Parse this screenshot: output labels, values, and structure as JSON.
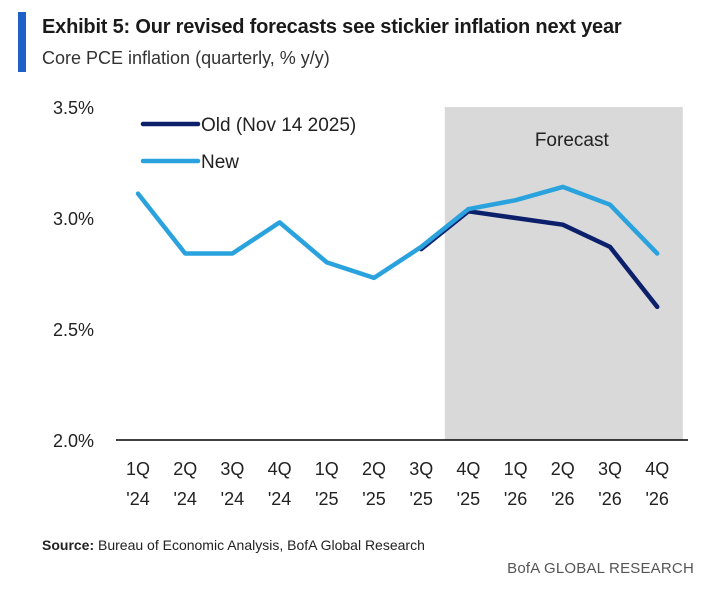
{
  "header": {
    "title": "Exhibit 5: Our revised forecasts see stickier inflation next year",
    "subtitle": "Core PCE inflation (quarterly, % y/y)"
  },
  "footer": {
    "source_label": "Source:",
    "source_text": "Bureau of Economic Analysis, BofA Global Research",
    "brand": "BofA GLOBAL RESEARCH"
  },
  "colors": {
    "old": "#0c1f6b",
    "new": "#2aa2dd",
    "forecast_shade": "#d9d9d9",
    "axis": "#000000"
  },
  "chart_data": {
    "type": "line",
    "title": "Exhibit 5: Our revised forecasts see stickier inflation next year",
    "subtitle": "Core PCE inflation (quarterly, % y/y)",
    "categories": [
      [
        "1Q",
        "'24"
      ],
      [
        "2Q",
        "'24"
      ],
      [
        "3Q",
        "'24"
      ],
      [
        "4Q",
        "'24"
      ],
      [
        "1Q",
        "'25"
      ],
      [
        "2Q",
        "'25"
      ],
      [
        "3Q",
        "'25"
      ],
      [
        "4Q",
        "'25"
      ],
      [
        "1Q",
        "'26"
      ],
      [
        "2Q",
        "'26"
      ],
      [
        "3Q",
        "'26"
      ],
      [
        "4Q",
        "'26"
      ]
    ],
    "yticks": [
      "2.0%",
      "2.5%",
      "3.0%",
      "3.5%"
    ],
    "ytick_values": [
      2.0,
      2.5,
      3.0,
      3.5
    ],
    "ylim": [
      2.0,
      3.5
    ],
    "forecast": {
      "label": "Forecast",
      "start_index": 6.5,
      "end_index": 11.5
    },
    "legend_position": "top-left",
    "series": [
      {
        "name": "Old (Nov 14 2025)",
        "key": "old",
        "values": [
          null,
          null,
          null,
          null,
          null,
          null,
          2.86,
          3.03,
          3.0,
          2.97,
          2.87,
          2.6
        ]
      },
      {
        "name": "New",
        "key": "new",
        "values": [
          3.11,
          2.84,
          2.84,
          2.98,
          2.8,
          2.73,
          2.87,
          3.04,
          3.08,
          3.14,
          3.06,
          2.84
        ]
      }
    ]
  }
}
